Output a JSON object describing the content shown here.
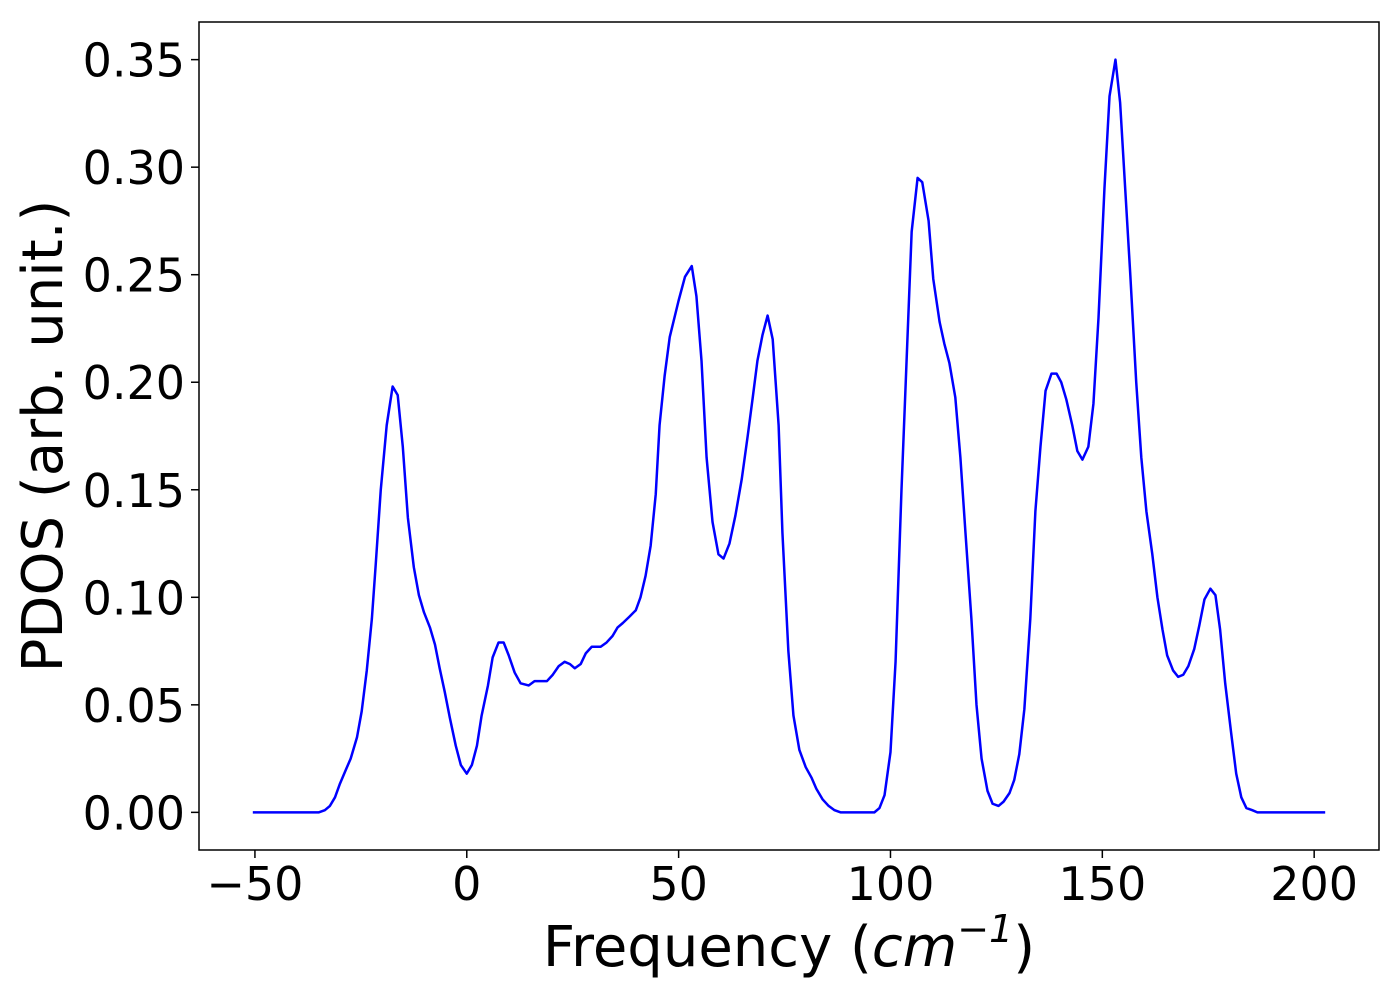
{
  "chart_data": {
    "type": "line",
    "xlabel": [
      "Frequency (",
      "cm",
      "−1",
      ")"
    ],
    "ylabel": "PDOS (arb. unit.)",
    "color": "#0000ff",
    "x": [
      -50.5,
      -34.9,
      -33.5,
      -32.3,
      -31.1,
      -30.0,
      -28.5,
      -27.4,
      -25.9,
      -24.8,
      -23.6,
      -22.4,
      -21.5,
      -20.3,
      -18.9,
      -17.5,
      -16.3,
      -15.1,
      -13.9,
      -12.5,
      -11.3,
      -10.1,
      -8.7,
      -7.5,
      -6.4,
      -5.2,
      -4.0,
      -2.6,
      -1.4,
      0.0,
      1.2,
      2.4,
      3.5,
      5.0,
      6.1,
      7.5,
      8.7,
      9.9,
      11.3,
      12.7,
      14.6,
      16.0,
      17.5,
      18.9,
      20.3,
      21.7,
      23.1,
      24.3,
      25.5,
      26.9,
      28.1,
      29.5,
      31.6,
      33.0,
      34.4,
      35.6,
      36.8,
      38.4,
      39.9,
      41.0,
      42.2,
      43.4,
      44.6,
      45.5,
      46.7,
      47.9,
      50.0,
      51.5,
      53.1,
      54.2,
      55.4,
      56.6,
      58.0,
      59.4,
      60.6,
      62.0,
      63.4,
      64.9,
      66.3,
      67.5,
      68.6,
      69.8,
      71.0,
      72.2,
      73.6,
      74.5,
      75.9,
      77.1,
      78.5,
      80.0,
      81.4,
      82.5,
      84.0,
      85.4,
      86.8,
      88.2,
      96.2,
      97.4,
      98.6,
      100.0,
      101.2,
      102.6,
      103.8,
      105.0,
      106.4,
      107.5,
      109.0,
      110.1,
      111.6,
      112.7,
      113.9,
      115.3,
      116.5,
      117.7,
      119.1,
      120.3,
      121.5,
      122.9,
      124.1,
      125.5,
      126.7,
      128.1,
      129.2,
      130.4,
      131.6,
      133.0,
      134.2,
      135.4,
      136.6,
      138.0,
      139.2,
      140.3,
      141.5,
      142.9,
      144.1,
      145.3,
      146.7,
      147.9,
      149.1,
      150.5,
      151.7,
      153.1,
      154.2,
      155.4,
      156.6,
      158.0,
      159.2,
      160.4,
      161.8,
      163.0,
      164.2,
      165.3,
      166.7,
      167.9,
      169.1,
      170.3,
      171.7,
      172.9,
      174.1,
      175.5,
      176.7,
      177.8,
      179.0,
      180.4,
      181.6,
      182.8,
      184.0,
      185.4,
      186.6,
      202.6
    ],
    "values": [
      0,
      0,
      0.001,
      0.003,
      0.007,
      0.013,
      0.02,
      0.025,
      0.035,
      0.047,
      0.066,
      0.09,
      0.115,
      0.15,
      0.18,
      0.198,
      0.194,
      0.17,
      0.137,
      0.114,
      0.101,
      0.093,
      0.086,
      0.078,
      0.067,
      0.056,
      0.044,
      0.031,
      0.022,
      0.018,
      0.022,
      0.031,
      0.045,
      0.059,
      0.072,
      0.079,
      0.079,
      0.073,
      0.065,
      0.06,
      0.059,
      0.061,
      0.061,
      0.061,
      0.064,
      0.068,
      0.07,
      0.069,
      0.067,
      0.069,
      0.074,
      0.077,
      0.077,
      0.079,
      0.082,
      0.086,
      0.088,
      0.091,
      0.094,
      0.1,
      0.11,
      0.124,
      0.148,
      0.18,
      0.203,
      0.221,
      0.238,
      0.249,
      0.254,
      0.24,
      0.21,
      0.165,
      0.135,
      0.12,
      0.118,
      0.125,
      0.138,
      0.155,
      0.175,
      0.193,
      0.21,
      0.222,
      0.231,
      0.22,
      0.18,
      0.13,
      0.075,
      0.045,
      0.029,
      0.021,
      0.016,
      0.011,
      0.006,
      0.003,
      0.001,
      0,
      0,
      0.002,
      0.008,
      0.028,
      0.07,
      0.15,
      0.21,
      0.27,
      0.295,
      0.293,
      0.275,
      0.248,
      0.228,
      0.218,
      0.209,
      0.193,
      0.165,
      0.13,
      0.09,
      0.05,
      0.025,
      0.01,
      0.004,
      0.003,
      0.005,
      0.009,
      0.015,
      0.027,
      0.048,
      0.09,
      0.14,
      0.17,
      0.196,
      0.204,
      0.204,
      0.2,
      0.192,
      0.18,
      0.168,
      0.164,
      0.17,
      0.19,
      0.23,
      0.29,
      0.333,
      0.35,
      0.33,
      0.29,
      0.25,
      0.2,
      0.165,
      0.14,
      0.12,
      0.1,
      0.085,
      0.073,
      0.066,
      0.063,
      0.064,
      0.068,
      0.076,
      0.087,
      0.099,
      0.104,
      0.101,
      0.085,
      0.06,
      0.037,
      0.018,
      0.007,
      0.002,
      0.001,
      0,
      0
    ],
    "xlim": [
      -63.2,
      215.3
    ],
    "ylim": [
      -0.0175,
      0.3675
    ],
    "xticks": [
      {
        "value": -50,
        "label": "−50"
      },
      0,
      50,
      100,
      150,
      200
    ],
    "yticks": [
      {
        "value": 0,
        "label": "0.00"
      },
      {
        "value": 0.05,
        "label": "0.05"
      },
      {
        "value": 0.1,
        "label": "0.10"
      },
      {
        "value": 0.15,
        "label": "0.15"
      },
      {
        "value": 0.2,
        "label": "0.20"
      },
      {
        "value": 0.25,
        "label": "0.25"
      },
      {
        "value": 0.3,
        "label": "0.30"
      },
      {
        "value": 0.35,
        "label": "0.35"
      }
    ],
    "grid": false
  }
}
